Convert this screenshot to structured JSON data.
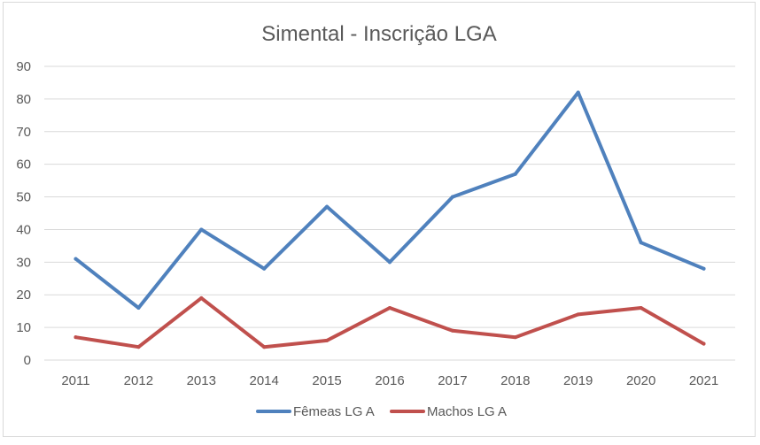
{
  "chart_data": {
    "type": "line",
    "title": "Simental - Inscrição LGA",
    "xlabel": "",
    "ylabel": "",
    "categories": [
      "2011",
      "2012",
      "2013",
      "2014",
      "2015",
      "2016",
      "2017",
      "2018",
      "2019",
      "2020",
      "2021"
    ],
    "series": [
      {
        "name": "Fêmeas LG A",
        "color": "#4f81bd",
        "values": [
          31,
          16,
          40,
          28,
          47,
          30,
          50,
          57,
          82,
          36,
          28
        ]
      },
      {
        "name": "Machos LG A",
        "color": "#c0504d",
        "values": [
          7,
          4,
          19,
          4,
          6,
          16,
          9,
          7,
          14,
          16,
          5
        ]
      }
    ],
    "ylim": [
      0,
      90
    ],
    "yticks": [
      0,
      10,
      20,
      30,
      40,
      50,
      60,
      70,
      80,
      90
    ],
    "grid": true,
    "legend_position": "bottom"
  }
}
